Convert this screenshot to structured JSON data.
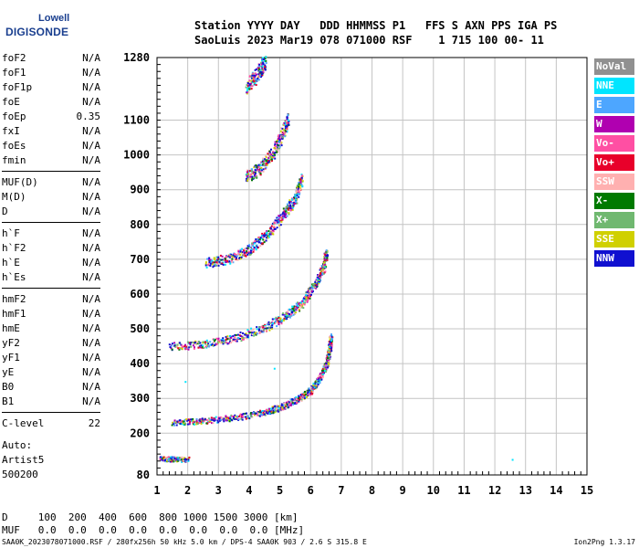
{
  "logo": {
    "line1": "Lowell",
    "line2": "DIGISONDE"
  },
  "header": {
    "line1": "Station YYYY DAY   DDD HHMMSS P1   FFS S AXN PPS IGA PS",
    "line2": "SaoLuis 2023 Mar19 078 071000 RSF    1 715 100 00- 11"
  },
  "params": [
    [
      {
        "name": "foF2",
        "value": "N/A"
      },
      {
        "name": "foF1",
        "value": "N/A"
      },
      {
        "name": "foF1p",
        "value": "N/A"
      },
      {
        "name": "foE",
        "value": "N/A"
      },
      {
        "name": "foEp",
        "value": "0.35"
      },
      {
        "name": "fxI",
        "value": "N/A"
      },
      {
        "name": "foEs",
        "value": "N/A"
      },
      {
        "name": "fmin",
        "value": "N/A"
      }
    ],
    [
      {
        "name": "MUF(D)",
        "value": "N/A"
      },
      {
        "name": "M(D)",
        "value": "N/A"
      },
      {
        "name": "D",
        "value": "N/A"
      }
    ],
    [
      {
        "name": "h`F",
        "value": "N/A"
      },
      {
        "name": "h`F2",
        "value": "N/A"
      },
      {
        "name": "h`E",
        "value": "N/A"
      },
      {
        "name": "h`Es",
        "value": "N/A"
      }
    ],
    [
      {
        "name": "hmF2",
        "value": "N/A"
      },
      {
        "name": "hmF1",
        "value": "N/A"
      },
      {
        "name": "hmE",
        "value": "N/A"
      },
      {
        "name": "yF2",
        "value": "N/A"
      },
      {
        "name": "yF1",
        "value": "N/A"
      },
      {
        "name": "yE",
        "value": "N/A"
      },
      {
        "name": "B0",
        "value": "N/A"
      },
      {
        "name": "B1",
        "value": "N/A"
      }
    ],
    [
      {
        "name": "C-level",
        "value": "22"
      }
    ]
  ],
  "autoscale": {
    "line1": "Auto:",
    "line2": "Artist5",
    "line3": "500200"
  },
  "legend": [
    {
      "label": "NoVal",
      "color": "#909090"
    },
    {
      "label": "NNE",
      "color": "#00e5ff"
    },
    {
      "label": "E",
      "color": "#4da6ff"
    },
    {
      "label": "W",
      "color": "#b000b0"
    },
    {
      "label": "Vo-",
      "color": "#ff4fa3"
    },
    {
      "label": "Vo+",
      "color": "#e8002a"
    },
    {
      "label": "SSW",
      "color": "#ffb0b0"
    },
    {
      "label": "X-",
      "color": "#007a00"
    },
    {
      "label": "X+",
      "color": "#70b870"
    },
    {
      "label": "SSE",
      "color": "#d0d000"
    },
    {
      "label": "NNW",
      "color": "#1010d0"
    }
  ],
  "bottom": {
    "d_row": "D     100  200  400  600  800 1000 1500 3000 [km]",
    "muf_row": "MUF   0.0  0.0  0.0  0.0  0.0  0.0  0.0  0.0 [MHz]"
  },
  "footer": {
    "left": "SAA0K_2023078071000.RSF / 280fx256h 50 kHz 5.0 km / DPS-4 SAA0K 903 / 2.6 S 315.8 E",
    "right": "Ion2Png 1.3.17"
  },
  "chart_data": {
    "type": "scatter",
    "xlim": [
      1,
      15
    ],
    "ylim": [
      80,
      1280
    ],
    "xticks": [
      1,
      2,
      3,
      4,
      5,
      6,
      7,
      8,
      9,
      10,
      11,
      12,
      13,
      14,
      15
    ],
    "yticks": [
      80,
      200,
      300,
      400,
      500,
      600,
      700,
      800,
      900,
      1000,
      1100,
      1280
    ],
    "grid": true,
    "traces": [
      {
        "name": "trace 1",
        "points": [
          [
            1.5,
            232
          ],
          [
            2.5,
            237
          ],
          [
            3.5,
            246
          ],
          [
            4.5,
            262
          ],
          [
            5.0,
            276
          ],
          [
            5.5,
            296
          ],
          [
            6.0,
            325
          ],
          [
            6.3,
            360
          ],
          [
            6.5,
            400
          ],
          [
            6.6,
            440
          ],
          [
            6.65,
            480
          ]
        ]
      },
      {
        "name": "trace 2",
        "points": [
          [
            1.4,
            450
          ],
          [
            2.5,
            458
          ],
          [
            3.5,
            474
          ],
          [
            4.5,
            505
          ],
          [
            5.2,
            540
          ],
          [
            5.7,
            575
          ],
          [
            6.1,
            625
          ],
          [
            6.4,
            675
          ],
          [
            6.5,
            720
          ]
        ]
      },
      {
        "name": "trace 3",
        "points": [
          [
            2.6,
            692
          ],
          [
            3.3,
            702
          ],
          [
            4.0,
            730
          ],
          [
            4.6,
            775
          ],
          [
            5.1,
            830
          ],
          [
            5.5,
            880
          ],
          [
            5.7,
            935
          ]
        ]
      },
      {
        "name": "trace 4",
        "points": [
          [
            3.9,
            938
          ],
          [
            4.3,
            960
          ],
          [
            4.8,
            1010
          ],
          [
            5.1,
            1070
          ],
          [
            5.25,
            1110
          ]
        ]
      },
      {
        "name": "trace 5",
        "points": [
          [
            3.9,
            1195
          ],
          [
            4.3,
            1240
          ],
          [
            4.5,
            1270
          ]
        ]
      },
      {
        "name": "trace 6",
        "points": [
          [
            1.1,
            128
          ],
          [
            1.5,
            127
          ],
          [
            2.0,
            126
          ]
        ]
      }
    ],
    "isolated": [
      [
        12.55,
        126
      ],
      [
        4.8,
        388
      ],
      [
        1.9,
        350
      ]
    ]
  }
}
